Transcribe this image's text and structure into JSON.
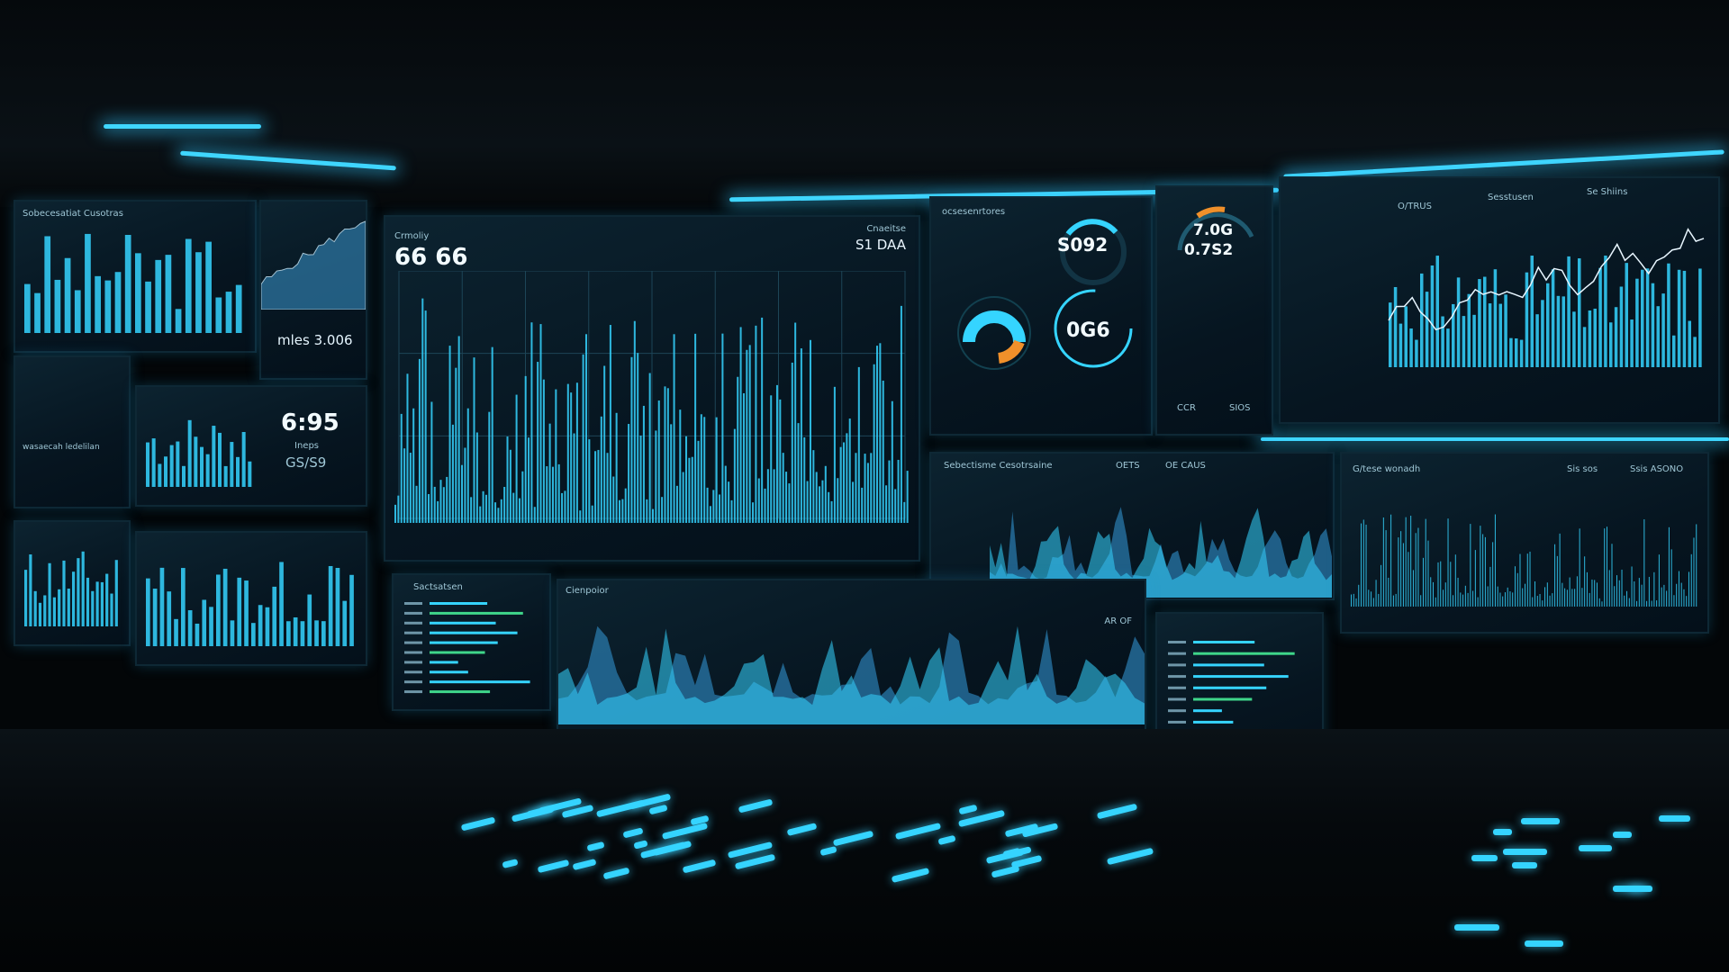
{
  "scene": "control room with dashboard monitors",
  "accent_color": "#35d4ff",
  "warning_color": "#f0902a",
  "left_panel": {
    "title": "Sobecesatiat Cusotras",
    "metric": "mles 3.006",
    "time": "6:95",
    "sub_value": "GS/S9",
    "sub_label": "Ineps",
    "list_title": "wasaecah ledelilan"
  },
  "main_monitor": {
    "title": "Crmoliy",
    "value": "66 66",
    "right_title": "Cnaeitse",
    "right_value": "S1 DAA"
  },
  "gauges": {
    "title": "ocsesenrtores",
    "gauge1": "S092",
    "gauge2": "0G6",
    "gauge3_top": "7.0G",
    "gauge3_bottom": "0.7S2",
    "footer": [
      "CCR",
      "SIOS"
    ]
  },
  "right_top": {
    "tabs": [
      "O/TRUS",
      "Sesstusen",
      "Se Shiins"
    ]
  },
  "middle_right": {
    "title": "Sebectisme Cesotrsaine",
    "values": [
      "OETS",
      "OE CAUS"
    ]
  },
  "right_middle": {
    "title": "G/tese wonadh",
    "badges": [
      "Sis sos",
      "Ssis ASONO"
    ]
  },
  "bottom_left": {
    "title": "Sactsatsen"
  },
  "bottom_center": {
    "title": "Cienpoior",
    "corner": "AR OF"
  }
}
